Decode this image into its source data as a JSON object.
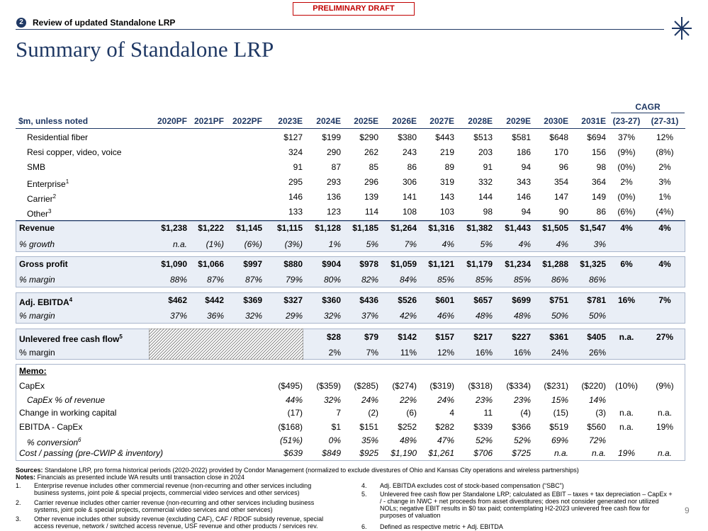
{
  "draft_label": "PRELIMINARY DRAFT",
  "section": {
    "number": "2",
    "title": "Review of updated Standalone LRP"
  },
  "title": "Summary of Standalone LRP",
  "page_number": "9",
  "table": {
    "unit_label": "$m, unless noted",
    "cagr_label": "CAGR",
    "columns": [
      "2020PF",
      "2021PF",
      "2022PF",
      "2023E",
      "2024E",
      "2025E",
      "2026E",
      "2027E",
      "2028E",
      "2029E",
      "2030E",
      "2031E",
      "(23-27)",
      "(27-31)"
    ],
    "rows": [
      {
        "label": "Residential fiber",
        "cells": [
          null,
          null,
          null,
          "$127",
          "$199",
          "$290",
          "$380",
          "$443",
          "$513",
          "$581",
          "$648",
          "$694",
          "37%",
          "12%"
        ]
      },
      {
        "label": "Resi copper, video, voice",
        "cells": [
          null,
          null,
          null,
          "324",
          "290",
          "262",
          "243",
          "219",
          "203",
          "186",
          "170",
          "156",
          "(9%)",
          "(8%)"
        ]
      },
      {
        "label": "SMB",
        "cells": [
          null,
          null,
          null,
          "91",
          "87",
          "85",
          "86",
          "89",
          "91",
          "94",
          "96",
          "98",
          "(0%)",
          "2%"
        ]
      },
      {
        "label": "Enterprise",
        "sup": "1",
        "cells": [
          null,
          null,
          null,
          "295",
          "293",
          "296",
          "306",
          "319",
          "332",
          "343",
          "354",
          "364",
          "2%",
          "3%"
        ]
      },
      {
        "label": "Carrier",
        "sup": "2",
        "cells": [
          null,
          null,
          null,
          "146",
          "136",
          "139",
          "141",
          "143",
          "144",
          "146",
          "147",
          "149",
          "(0%)",
          "1%"
        ]
      },
      {
        "label": "Other",
        "sup": "3",
        "cells": [
          null,
          null,
          null,
          "133",
          "123",
          "114",
          "108",
          "103",
          "98",
          "94",
          "90",
          "86",
          "(6%)",
          "(4%)"
        ]
      },
      {
        "label": "Revenue",
        "cells": [
          "$1,238",
          "$1,222",
          "$1,145",
          "$1,115",
          "$1,128",
          "$1,185",
          "$1,264",
          "$1,316",
          "$1,382",
          "$1,443",
          "$1,505",
          "$1,547",
          "4%",
          "4%"
        ]
      },
      {
        "label": "% growth",
        "cells": [
          "n.a.",
          "(1%)",
          "(6%)",
          "(3%)",
          "1%",
          "5%",
          "7%",
          "4%",
          "5%",
          "4%",
          "4%",
          "3%",
          null,
          null
        ]
      },
      {
        "label": "Gross profit",
        "cells": [
          "$1,090",
          "$1,066",
          "$997",
          "$880",
          "$904",
          "$978",
          "$1,059",
          "$1,121",
          "$1,179",
          "$1,234",
          "$1,288",
          "$1,325",
          "6%",
          "4%"
        ]
      },
      {
        "label": "% margin",
        "cells": [
          "88%",
          "87%",
          "87%",
          "79%",
          "80%",
          "82%",
          "84%",
          "85%",
          "85%",
          "85%",
          "86%",
          "86%",
          null,
          null
        ]
      },
      {
        "label": "Adj. EBITDA",
        "sup": "4",
        "cells": [
          "$462",
          "$442",
          "$369",
          "$327",
          "$360",
          "$436",
          "$526",
          "$601",
          "$657",
          "$699",
          "$751",
          "$781",
          "16%",
          "7%"
        ]
      },
      {
        "label": "% margin",
        "cells": [
          "37%",
          "36%",
          "32%",
          "29%",
          "32%",
          "37%",
          "42%",
          "46%",
          "48%",
          "48%",
          "50%",
          "50%",
          null,
          null
        ]
      },
      {
        "label": "Unlevered free cash flow",
        "sup": "5",
        "cells": [
          null,
          null,
          null,
          null,
          "$28",
          "$79",
          "$142",
          "$157",
          "$217",
          "$227",
          "$361",
          "$405",
          "n.a.",
          "27%"
        ]
      },
      {
        "label": "% margin",
        "cells": [
          null,
          null,
          null,
          null,
          "2%",
          "7%",
          "11%",
          "12%",
          "16%",
          "16%",
          "24%",
          "26%",
          null,
          null
        ]
      },
      {
        "label": "Memo:"
      },
      {
        "label": "CapEx",
        "cells": [
          null,
          null,
          null,
          "($495)",
          "($359)",
          "($285)",
          "($274)",
          "($319)",
          "($318)",
          "($334)",
          "($231)",
          "($220)",
          "(10%)",
          "(9%)"
        ]
      },
      {
        "label": "CapEx % of revenue",
        "cells": [
          null,
          null,
          null,
          "44%",
          "32%",
          "24%",
          "22%",
          "24%",
          "23%",
          "23%",
          "15%",
          "14%",
          null,
          null
        ]
      },
      {
        "label": "Change in working capital",
        "cells": [
          null,
          null,
          null,
          "(17)",
          "7",
          "(2)",
          "(6)",
          "4",
          "11",
          "(4)",
          "(15)",
          "(3)",
          "n.a.",
          "n.a."
        ]
      },
      {
        "label": "EBITDA - CapEx",
        "cells": [
          null,
          null,
          null,
          "($168)",
          "$1",
          "$151",
          "$252",
          "$282",
          "$339",
          "$366",
          "$519",
          "$560",
          "n.a.",
          "19%"
        ]
      },
      {
        "label": "% conversion",
        "sup": "6",
        "cells": [
          null,
          null,
          null,
          "(51%)",
          "0%",
          "35%",
          "48%",
          "47%",
          "52%",
          "52%",
          "69%",
          "72%",
          null,
          null
        ]
      },
      {
        "label": "Cost / passing (pre-CWIP & inventory)",
        "cells": [
          null,
          null,
          null,
          "$639",
          "$849",
          "$925",
          "$1,190",
          "$1,261",
          "$706",
          "$725",
          "n.a.",
          "n.a.",
          "19%",
          "n.a."
        ]
      }
    ]
  },
  "footer": {
    "sources_label": "Sources:",
    "sources": "Standalone LRP, pro forma historical periods (2020-2022) provided by Condor Management (normalized to exclude divestures of Ohio and Kansas City operations and wireless partnerships)",
    "notes_label": "Notes:",
    "notes": "Financials as presented include WA results until transaction close in 2024",
    "footnotes": [
      {
        "number": "1.",
        "text": "Enterprise revenue includes other commercial revenue (non-recurring and other services including business systems, joint pole & special projects, commercial video services and other services)"
      },
      {
        "number": "2.",
        "text": "Carrier revenue includes other carrier revenue (non-recurring and other services including business systems, joint pole & special projects, commercial video services and other services)"
      },
      {
        "number": "3.",
        "text": "Other revenue includes other subsidy revenue (excluding CAF), CAF / RDOF subsidy revenue, special access revenue, network / switched access revenue, USF revenue and other products / services rev."
      },
      {
        "number": "4.",
        "text": "Adj. EBITDA excludes cost of stock-based compensation (“SBC”)"
      },
      {
        "number": "5.",
        "text": "Unlevered free cash flow per Standalone LRP; calculated as EBIT – taxes + tax depreciation – CapEx + / - change in NWC + net proceeds from asset divestitures; does not consider generated nor utilized NOLs; negative EBIT results in $0 tax paid; contemplating H2-2023 unlevered free cash flow for purposes of valuation"
      },
      {
        "number": "6.",
        "text": "Defined as respective metric + Adj. EBITDA"
      }
    ]
  }
}
